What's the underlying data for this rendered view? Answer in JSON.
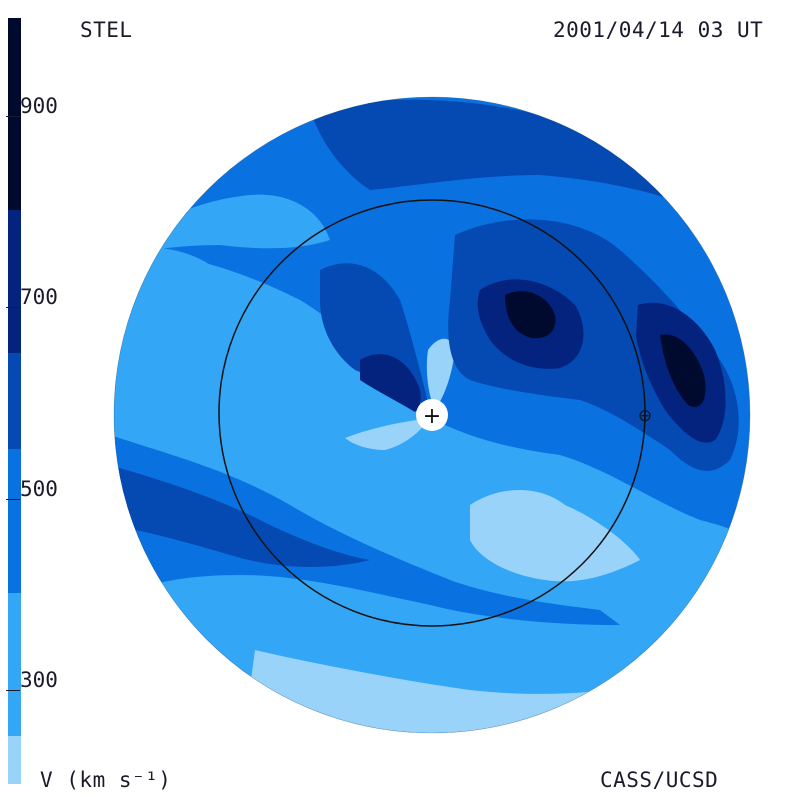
{
  "header": {
    "observatory": "STEL",
    "timestamp": "2001/04/14 03 UT"
  },
  "footer": {
    "colorbar_label": "V (km s⁻¹)",
    "credit": "CASS/UCSD"
  },
  "colorbar": {
    "range": [
      200,
      1000
    ],
    "ticks": [
      {
        "value": 900,
        "label": "900"
      },
      {
        "value": 700,
        "label": "700"
      },
      {
        "value": 500,
        "label": "500"
      },
      {
        "value": 300,
        "label": "300"
      }
    ],
    "bands": [
      {
        "from": 200,
        "to": 250,
        "color": "#99d3fa"
      },
      {
        "from": 250,
        "to": 400,
        "color": "#33a6f5"
      },
      {
        "from": 400,
        "to": 550,
        "color": "#0a72e0"
      },
      {
        "from": 550,
        "to": 650,
        "color": "#0549b3"
      },
      {
        "from": 650,
        "to": 800,
        "color": "#03237e"
      },
      {
        "from": 800,
        "to": 1000,
        "color": "#000a2e"
      }
    ]
  },
  "markers": {
    "sun_symbol": "+",
    "earth_symbol": "⊕"
  }
}
